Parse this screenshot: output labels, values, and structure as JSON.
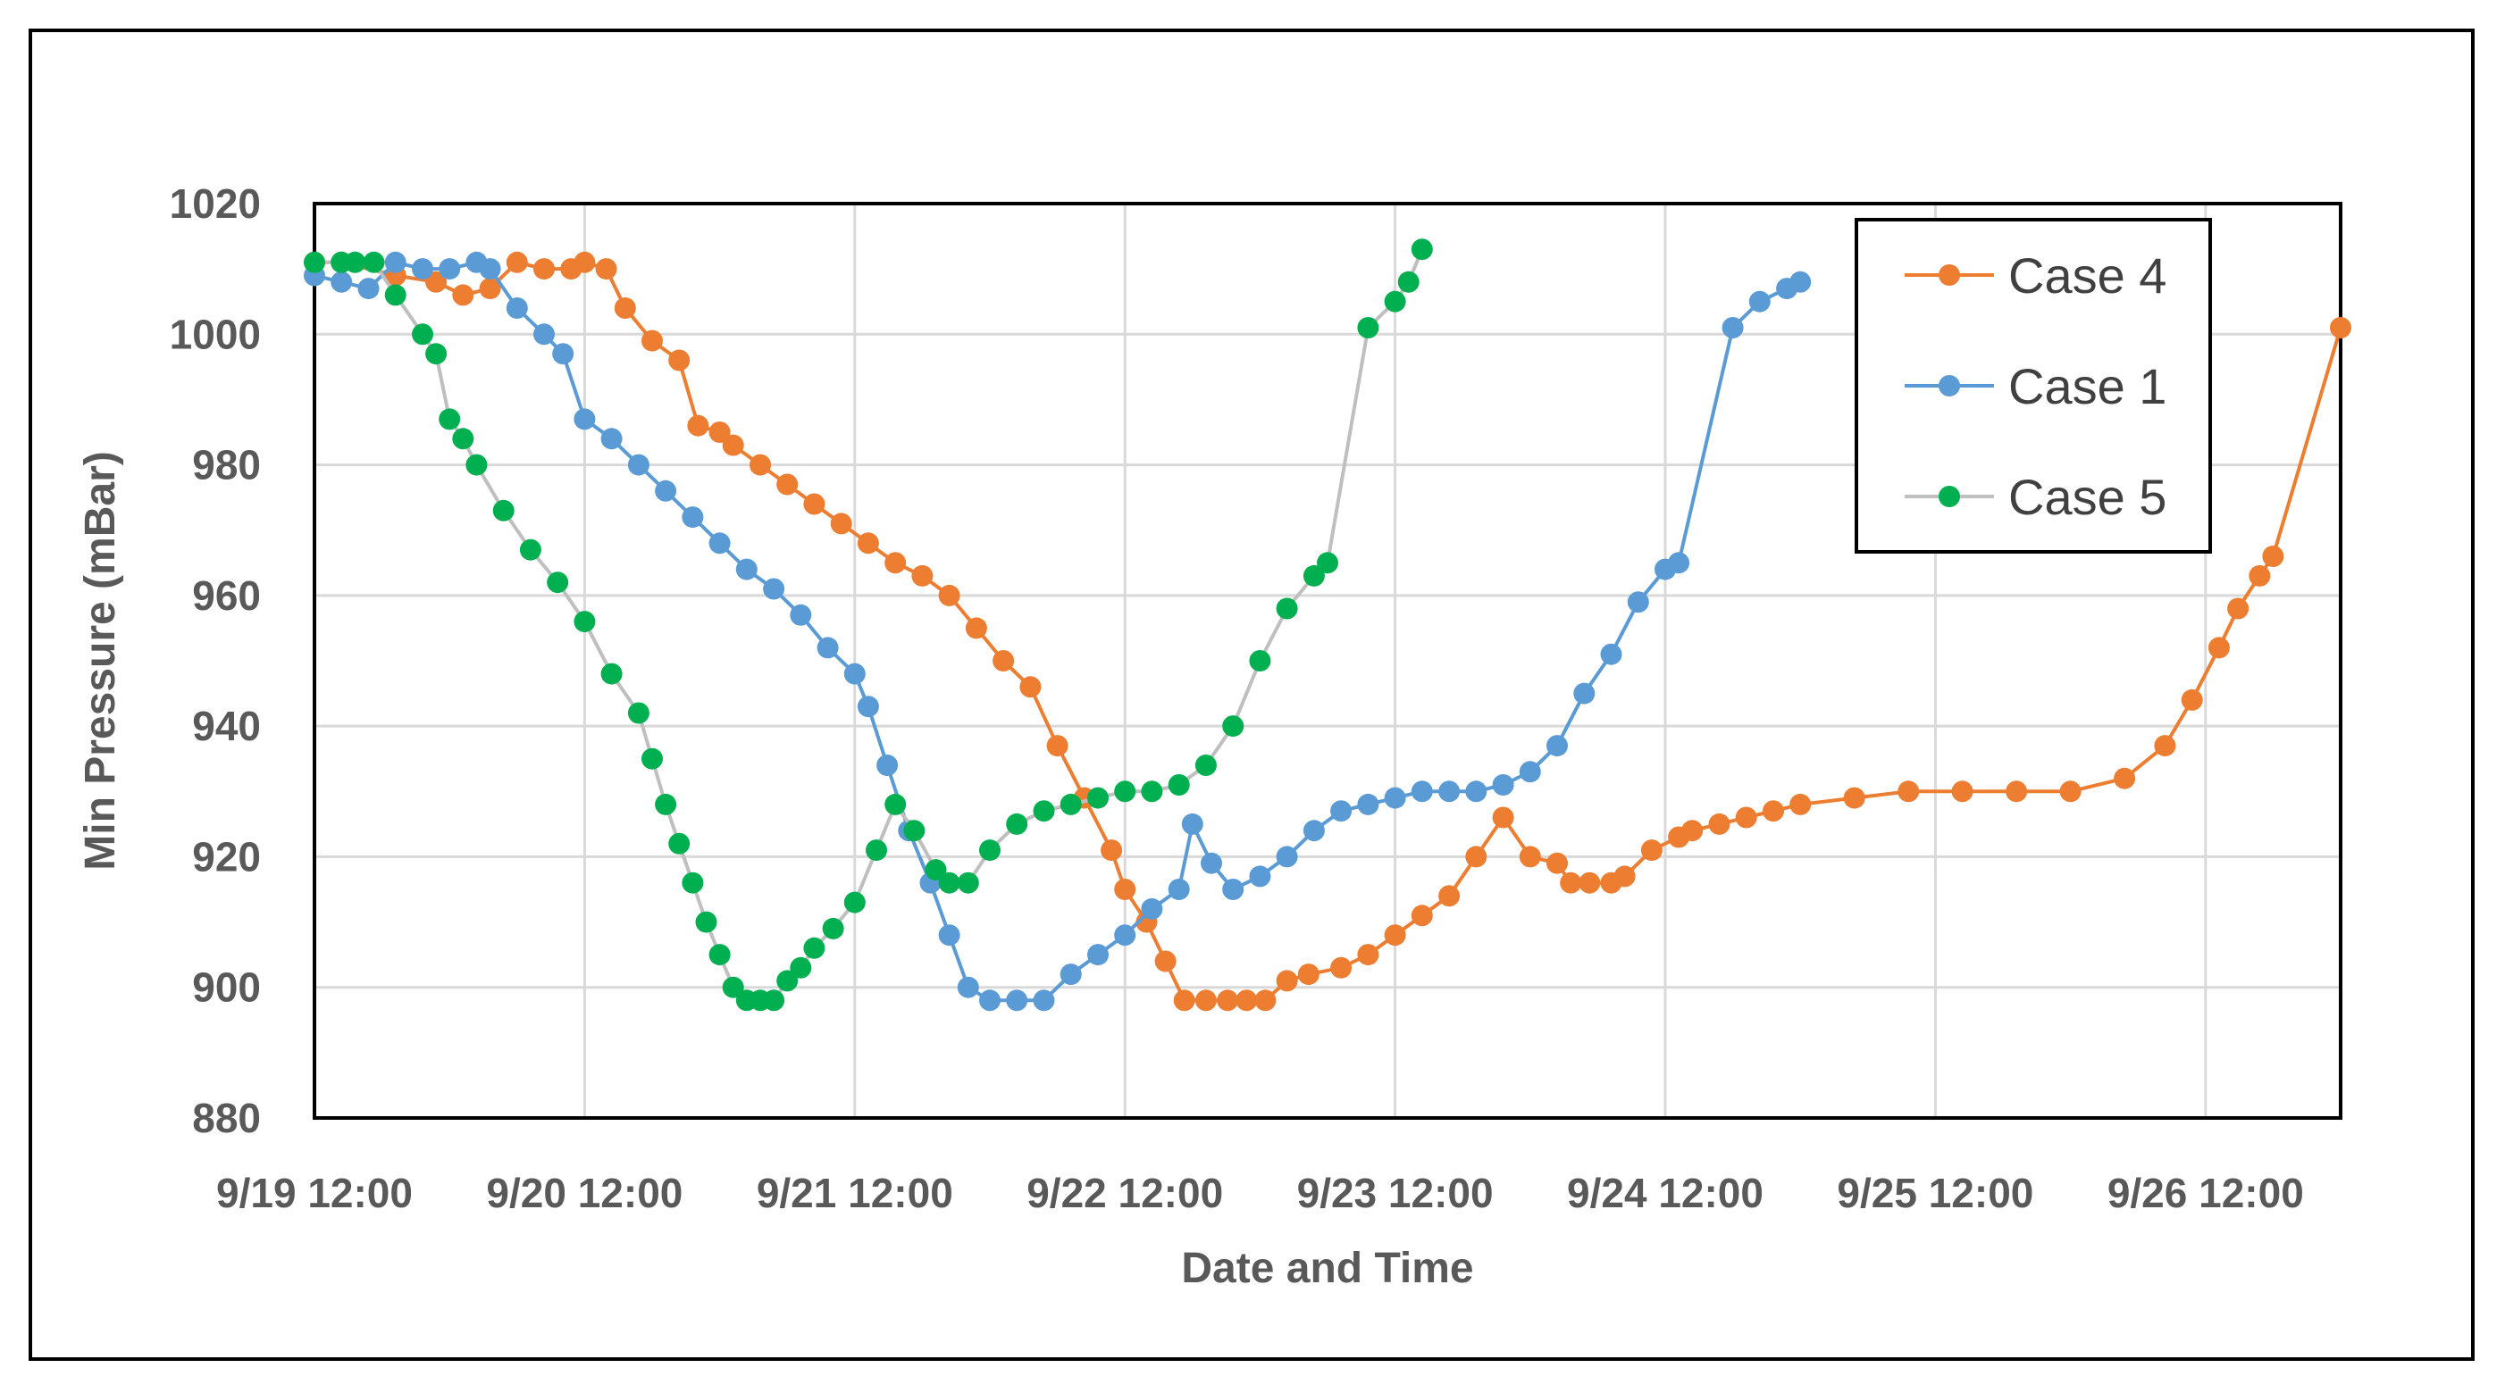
{
  "chart_data": {
    "type": "line",
    "title": "",
    "xlabel": "Date and Time",
    "ylabel": "Min Pressure (mBar)",
    "ylim": [
      880,
      1020
    ],
    "yticks": [
      880,
      900,
      920,
      940,
      960,
      980,
      1000,
      1020
    ],
    "xlim": [
      0.5,
      8.0
    ],
    "x_unit": "days since 9/19 00:00",
    "xtick_values": [
      0.5,
      1.5,
      2.5,
      3.5,
      4.5,
      5.5,
      6.5,
      7.5
    ],
    "xtick_labels": [
      "9/19 12:00",
      "9/20 12:00",
      "9/21 12:00",
      "9/22 12:00",
      "9/23 12:00",
      "9/24 12:00",
      "9/25 12:00",
      "9/26 12:00"
    ],
    "grid": true,
    "legend_position": "top-right",
    "series": [
      {
        "name": "Case 4",
        "color": "#ED7D31",
        "line_color": "#ED7D31",
        "x": [
          0.5,
          0.6,
          0.8,
          0.95,
          1.05,
          1.15,
          1.25,
          1.35,
          1.45,
          1.5,
          1.58,
          1.65,
          1.75,
          1.85,
          1.92,
          2.0,
          2.05,
          2.15,
          2.25,
          2.35,
          2.45,
          2.55,
          2.65,
          2.75,
          2.85,
          2.95,
          3.05,
          3.15,
          3.25,
          3.35,
          3.45,
          3.5,
          3.58,
          3.65,
          3.72,
          3.8,
          3.88,
          3.95,
          4.02,
          4.1,
          4.18,
          4.3,
          4.4,
          4.5,
          4.6,
          4.7,
          4.8,
          4.9,
          5.0,
          5.1,
          5.15,
          5.22,
          5.3,
          5.35,
          5.45,
          5.55,
          5.6,
          5.7,
          5.8,
          5.9,
          6.0,
          6.2,
          6.4,
          6.6,
          6.8,
          7.0,
          7.2,
          7.35,
          7.45,
          7.55,
          7.62,
          7.7,
          7.75,
          8.0
        ],
        "y": [
          1011,
          1011,
          1009,
          1008,
          1006,
          1007,
          1011,
          1010,
          1010,
          1011,
          1010,
          1004,
          999,
          996,
          986,
          985,
          983,
          980,
          977,
          974,
          971,
          968,
          965,
          963,
          960,
          955,
          950,
          946,
          937,
          929,
          921,
          915,
          910,
          904,
          898,
          898,
          898,
          898,
          898,
          901,
          902,
          903,
          905,
          908,
          911,
          914,
          920,
          926,
          920,
          919,
          916,
          916,
          916,
          917,
          921,
          923,
          924,
          925,
          926,
          927,
          928,
          929,
          930,
          930,
          930,
          930,
          932,
          937,
          944,
          952,
          958,
          963,
          966,
          1001
        ]
      },
      {
        "name": "Case 1",
        "color": "#5B9BD5",
        "line_color": "#5B9BD5",
        "x": [
          0.5,
          0.6,
          0.7,
          0.8,
          0.9,
          1.0,
          1.1,
          1.15,
          1.25,
          1.35,
          1.42,
          1.5,
          1.6,
          1.7,
          1.8,
          1.9,
          2.0,
          2.1,
          2.2,
          2.3,
          2.4,
          2.5,
          2.55,
          2.62,
          2.7,
          2.78,
          2.85,
          2.92,
          3.0,
          3.1,
          3.2,
          3.3,
          3.4,
          3.5,
          3.6,
          3.7,
          3.75,
          3.82,
          3.9,
          4.0,
          4.1,
          4.2,
          4.3,
          4.4,
          4.5,
          4.6,
          4.7,
          4.8,
          4.9,
          5.0,
          5.1,
          5.2,
          5.3,
          5.4,
          5.5,
          5.55,
          5.75,
          5.85,
          5.95,
          6.0
        ],
        "y": [
          1009,
          1008,
          1007,
          1011,
          1010,
          1010,
          1011,
          1010,
          1004,
          1000,
          997,
          987,
          984,
          980,
          976,
          972,
          968,
          964,
          961,
          957,
          952,
          948,
          943,
          934,
          924,
          916,
          908,
          900,
          898,
          898,
          898,
          902,
          905,
          908,
          912,
          915,
          925,
          919,
          915,
          917,
          920,
          924,
          927,
          928,
          929,
          930,
          930,
          930,
          931,
          933,
          937,
          945,
          951,
          959,
          964,
          965,
          1001,
          1005,
          1007,
          1008
        ]
      },
      {
        "name": "Case 5",
        "color": "#00B050",
        "line_color": "#BFBFBF",
        "x": [
          0.5,
          0.6,
          0.65,
          0.72,
          0.8,
          0.9,
          0.95,
          1.0,
          1.05,
          1.1,
          1.2,
          1.3,
          1.4,
          1.5,
          1.6,
          1.7,
          1.75,
          1.8,
          1.85,
          1.9,
          1.95,
          2.0,
          2.05,
          2.1,
          2.15,
          2.2,
          2.25,
          2.3,
          2.35,
          2.42,
          2.5,
          2.58,
          2.65,
          2.72,
          2.8,
          2.85,
          2.92,
          3.0,
          3.1,
          3.2,
          3.3,
          3.4,
          3.5,
          3.6,
          3.7,
          3.8,
          3.9,
          4.0,
          4.1,
          4.2,
          4.25,
          4.4,
          4.5,
          4.55,
          4.6
        ],
        "y": [
          1011,
          1011,
          1011,
          1011,
          1006,
          1000,
          997,
          987,
          984,
          980,
          973,
          967,
          962,
          956,
          948,
          942,
          935,
          928,
          922,
          916,
          910,
          905,
          900,
          898,
          898,
          898,
          901,
          903,
          906,
          909,
          913,
          921,
          928,
          924,
          918,
          916,
          916,
          921,
          925,
          927,
          928,
          929,
          930,
          930,
          931,
          934,
          940,
          950,
          958,
          963,
          965,
          1001,
          1005,
          1008,
          1013
        ]
      }
    ]
  }
}
